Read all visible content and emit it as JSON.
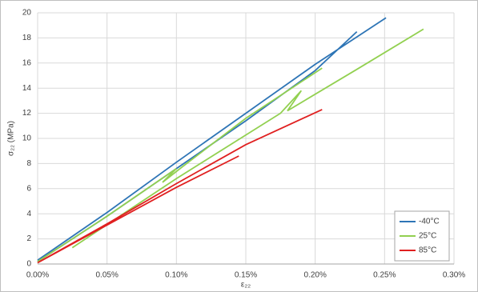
{
  "chart_data": {
    "type": "line",
    "y_label": "σ₂₂ (MPa)",
    "x_label": "ε₂₂",
    "xlim": [
      0,
      0.3
    ],
    "ylim": [
      0,
      20
    ],
    "xticks": [
      {
        "value": 0,
        "label": "0.00%"
      },
      {
        "value": 0.05,
        "label": "0.05%"
      },
      {
        "value": 0.1,
        "label": "0.10%"
      },
      {
        "value": 0.15,
        "label": "0.15%"
      },
      {
        "value": 0.2,
        "label": "0.20%"
      },
      {
        "value": 0.25,
        "label": "0.25%"
      },
      {
        "value": 0.3,
        "label": "0.30%"
      }
    ],
    "yticks": [
      0,
      2,
      4,
      6,
      8,
      10,
      12,
      14,
      16,
      18,
      20
    ],
    "grid": true,
    "legend": "bottom-right",
    "series": [
      {
        "name": "-40°C",
        "color": "#2e75b6",
        "x": [
          0,
          0.05,
          0.1,
          0.15,
          0.2,
          0.251,
          null,
          0,
          0.05,
          0.1,
          0.15,
          0.2,
          0.23
        ],
        "values": [
          0.3,
          4.1,
          8.1,
          12.0,
          15.9,
          19.6,
          null,
          0.2,
          3.8,
          7.6,
          11.4,
          15.4,
          18.5
        ]
      },
      {
        "name": "25°C",
        "color": "#92d050",
        "x": [
          0,
          0.05,
          0.1,
          0.09,
          0.105,
          0.15,
          0.205,
          null,
          0.025,
          0.1,
          0.175,
          0.19,
          0.18,
          0.23,
          0.278
        ],
        "values": [
          0.2,
          3.8,
          7.6,
          6.5,
          7.8,
          11.6,
          15.6,
          null,
          1.3,
          6.8,
          12.0,
          13.8,
          12.2,
          15.5,
          18.7
        ]
      },
      {
        "name": "85°C",
        "color": "#e02020",
        "x": [
          0,
          0.05,
          0.1,
          0.15,
          0.205,
          null,
          0,
          0.05,
          0.1,
          0.145
        ],
        "values": [
          0.1,
          3.2,
          6.4,
          9.5,
          12.3,
          null,
          0.1,
          3.1,
          6.1,
          8.6
        ]
      }
    ]
  }
}
